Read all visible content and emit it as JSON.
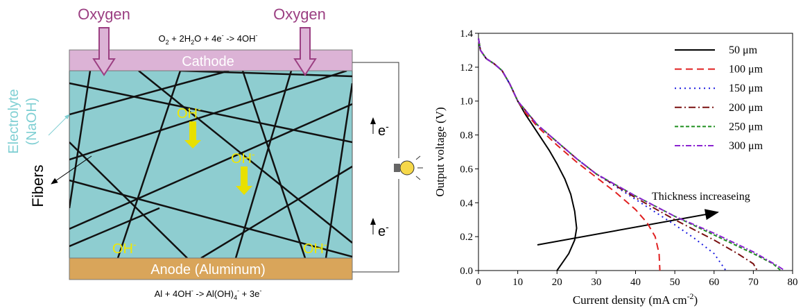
{
  "diagram": {
    "oxygen_left": "Oxygen",
    "oxygen_right": "Oxygen",
    "cathode_reaction": [
      "O",
      "2",
      " + 2H",
      "2",
      "O + 4e",
      "-",
      " -> 4OH",
      "-"
    ],
    "cathode": "Cathode",
    "electrolyte": [
      "Electrolyte",
      "(NaOH)"
    ],
    "fibers": "Fibers",
    "hydroxide_labels": [
      [
        "OH",
        "-"
      ],
      [
        "OH",
        "-"
      ],
      [
        "OH",
        "-"
      ],
      [
        "OH",
        "-"
      ]
    ],
    "electron_labels": [
      [
        "e",
        "-"
      ],
      [
        "e",
        "-"
      ]
    ],
    "anode": "Anode (Aluminum)",
    "anode_reaction": [
      "Al + 4OH",
      "-",
      " -> Al(OH)",
      "4",
      "-",
      " + 3e",
      "-"
    ]
  },
  "chart_data": {
    "type": "line",
    "xlabel": [
      "Current density (mA cm",
      "-2",
      ")"
    ],
    "ylabel": "Output voltage (V)",
    "annotation": "Thickness increaseing",
    "xlim": [
      0,
      80
    ],
    "ylim": [
      0,
      1.4
    ],
    "xticks": [
      0,
      10,
      20,
      30,
      40,
      50,
      60,
      70,
      80
    ],
    "yticks": [
      {
        "value": 0,
        "label": "0.0"
      },
      0.2,
      0.4,
      0.6,
      0.8,
      {
        "value": 1,
        "label": "1.0"
      },
      1.2,
      1.4
    ],
    "legend": "upper right",
    "series": [
      {
        "name": "50 μm",
        "color": "#000000",
        "x": [
          0,
          0.5,
          2,
          4,
          6,
          8,
          10,
          12,
          14,
          16,
          18,
          20,
          22,
          23.5,
          24.5,
          25,
          24.5,
          23,
          21.5,
          20
        ],
        "values": [
          1.37,
          1.3,
          1.25,
          1.22,
          1.18,
          1.1,
          1.0,
          0.92,
          0.85,
          0.78,
          0.71,
          0.63,
          0.54,
          0.45,
          0.35,
          0.25,
          0.18,
          0.1,
          0.05,
          0
        ]
      },
      {
        "name": "100 μm",
        "color": "#e02020",
        "x": [
          0,
          0.5,
          2,
          4,
          6,
          8,
          10,
          12,
          15,
          20,
          25,
          30,
          35,
          40,
          43,
          45,
          46,
          46.2
        ],
        "values": [
          1.37,
          1.3,
          1.25,
          1.22,
          1.18,
          1.1,
          1.0,
          0.93,
          0.85,
          0.74,
          0.64,
          0.55,
          0.46,
          0.36,
          0.28,
          0.2,
          0.1,
          0
        ]
      },
      {
        "name": "150 μm",
        "color": "#1a1ae0",
        "x": [
          0,
          0.5,
          2,
          4,
          6,
          8,
          10,
          15,
          20,
          25,
          30,
          40,
          50,
          55,
          60,
          63
        ],
        "values": [
          1.37,
          1.3,
          1.25,
          1.22,
          1.18,
          1.1,
          1.0,
          0.86,
          0.76,
          0.66,
          0.57,
          0.42,
          0.27,
          0.19,
          0.1,
          0
        ]
      },
      {
        "name": "200 μm",
        "color": "#7a1010",
        "x": [
          0,
          0.5,
          2,
          4,
          6,
          8,
          10,
          15,
          20,
          25,
          30,
          40,
          50,
          60,
          66,
          70,
          71
        ],
        "values": [
          1.37,
          1.3,
          1.25,
          1.22,
          1.18,
          1.1,
          1.0,
          0.86,
          0.76,
          0.66,
          0.57,
          0.43,
          0.3,
          0.18,
          0.1,
          0.04,
          0
        ]
      },
      {
        "name": "250 μm",
        "color": "#1f8f1f",
        "x": [
          0,
          0.5,
          2,
          4,
          6,
          8,
          10,
          15,
          20,
          25,
          30,
          40,
          50,
          60,
          70,
          75,
          77
        ],
        "values": [
          1.37,
          1.3,
          1.25,
          1.22,
          1.18,
          1.1,
          1.0,
          0.86,
          0.76,
          0.66,
          0.57,
          0.44,
          0.32,
          0.21,
          0.1,
          0.04,
          0
        ]
      },
      {
        "name": "300 μm",
        "color": "#8a22d0",
        "x": [
          0,
          0.5,
          2,
          4,
          6,
          8,
          10,
          15,
          20,
          25,
          30,
          40,
          50,
          60,
          70,
          76,
          78
        ],
        "values": [
          1.37,
          1.3,
          1.25,
          1.22,
          1.18,
          1.1,
          1.0,
          0.86,
          0.76,
          0.66,
          0.57,
          0.44,
          0.32,
          0.22,
          0.11,
          0.03,
          0
        ]
      }
    ]
  }
}
